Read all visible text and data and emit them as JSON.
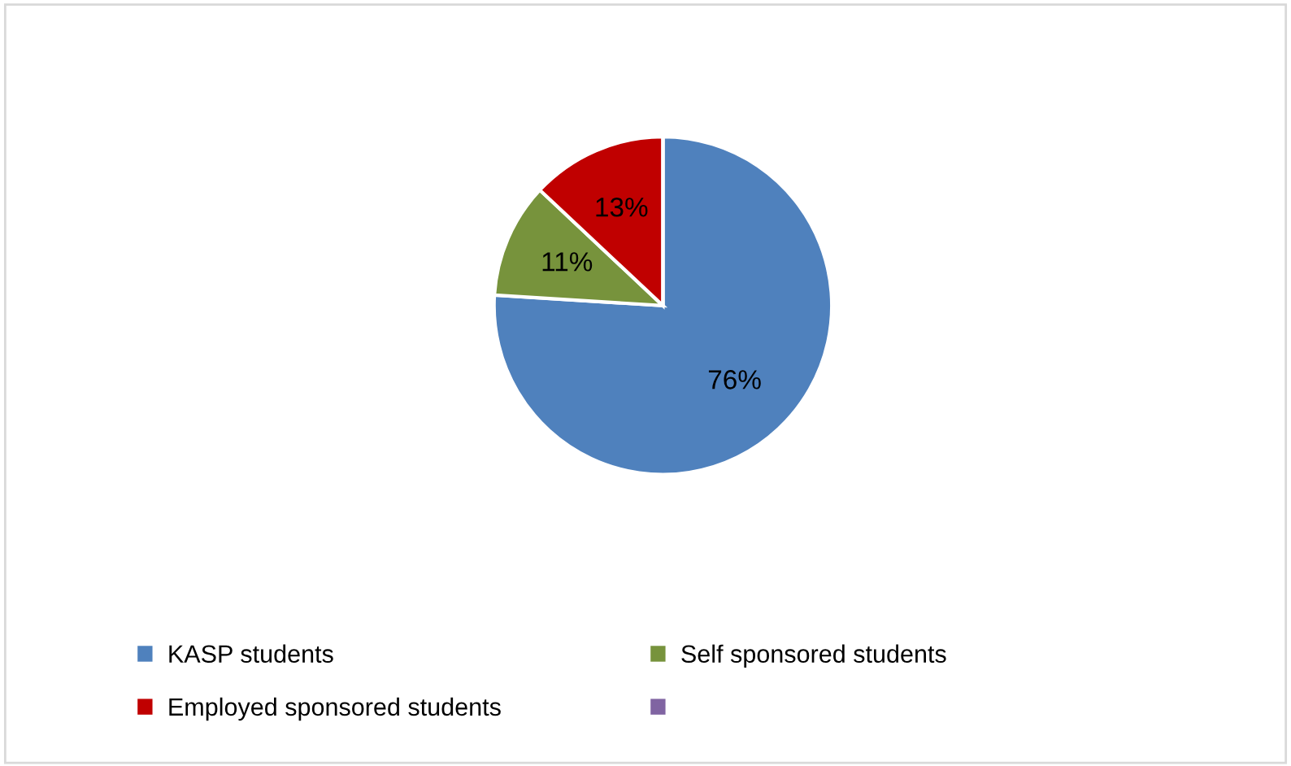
{
  "chart_data": {
    "type": "pie",
    "categories": [
      "KASP students",
      "Self sponsored students",
      "Employed sponsored students",
      null
    ],
    "values": [
      76,
      11,
      13,
      0
    ],
    "colors": [
      "#4f81bd",
      "#77933c",
      "#c00000",
      "#8064a2"
    ],
    "value_labels": [
      "76%",
      "11%",
      "13%",
      null
    ],
    "legend": "bottom"
  }
}
